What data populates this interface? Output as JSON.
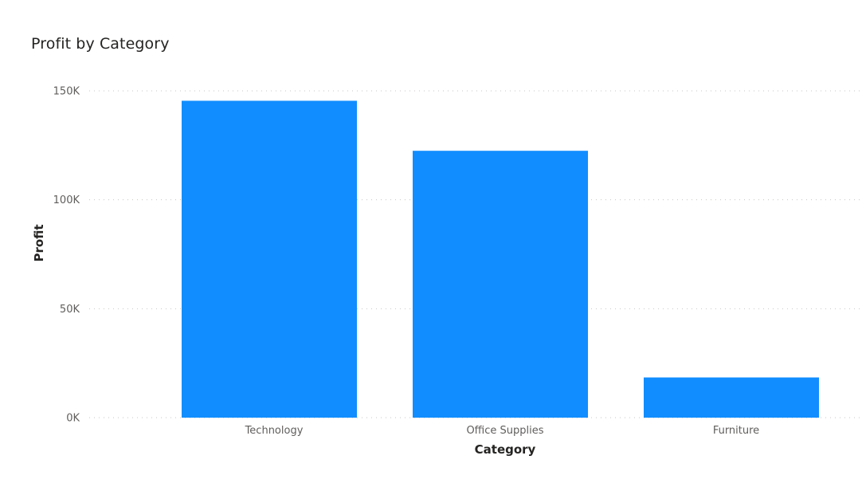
{
  "chart_data": {
    "type": "bar",
    "title": "Profit by Category",
    "xlabel": "Category",
    "ylabel": "Profit",
    "categories": [
      "Technology",
      "Office Supplies",
      "Furniture"
    ],
    "values": [
      145455,
      122490,
      18451
    ],
    "ylim": [
      0,
      150000
    ],
    "yticks": [
      0,
      50000,
      100000,
      150000
    ],
    "ytick_labels": [
      "0K",
      "50K",
      "100K",
      "150K"
    ],
    "grid": true,
    "legend": "none",
    "bar_color": "#118dff"
  }
}
